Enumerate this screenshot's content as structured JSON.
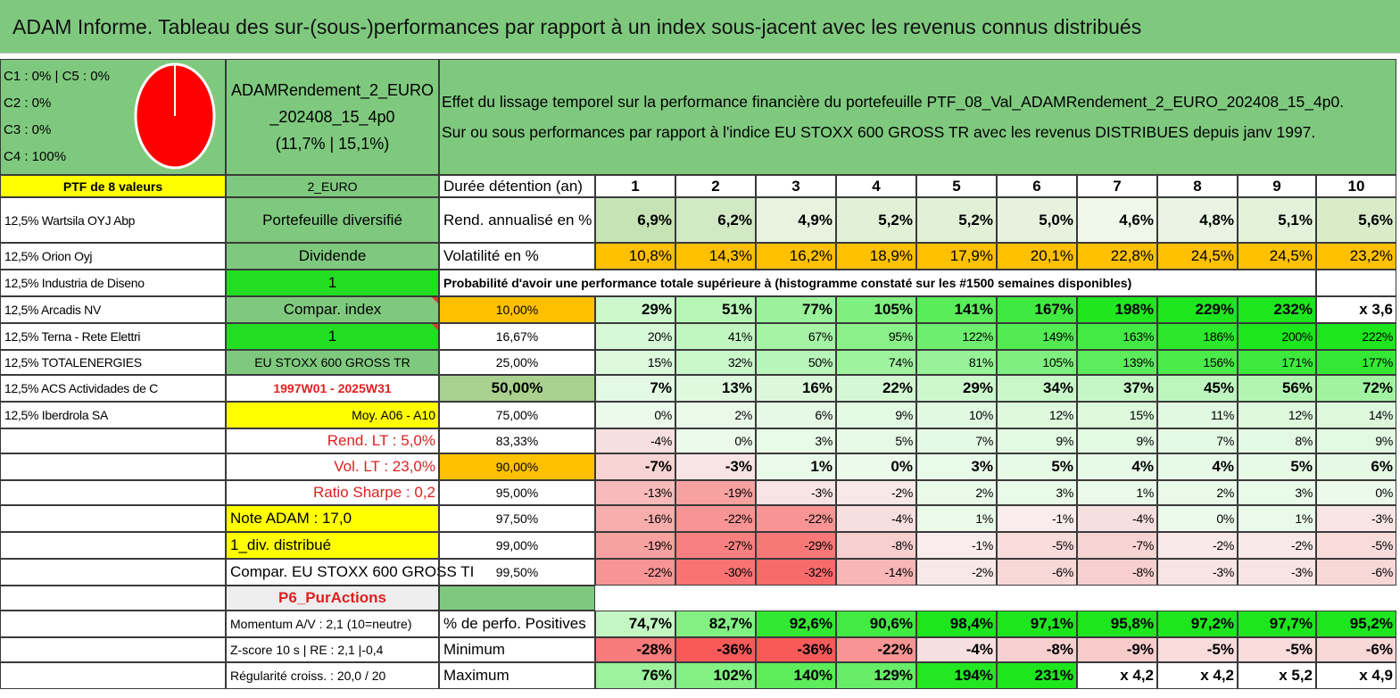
{
  "title": "ADAM Informe. Tableau des sur-(sous-)performances par rapport à un index sous-jacent avec les revenus connus distribués",
  "colors": {
    "title_green": "#7fc97f",
    "header_green": "#7fc97f",
    "bright_green": "#22dd22",
    "yellow": "#ffff00",
    "orange": "#ffc000",
    "red_text": "#e02020",
    "pie_red": "#ff0000"
  },
  "legend": {
    "lines": [
      "C1 : 0% | C5 : 0%",
      "C2 : 0%",
      "C3 : 0%",
      "C4 : 100%"
    ],
    "pie_value": 100
  },
  "fund": {
    "name_line1": "ADAMRendement_2_EURO",
    "name_line2": "_202408_15_4p0",
    "stats": "(11,7% | 15,1%)"
  },
  "description": {
    "line1": "Effet du lissage temporel sur la performance financière du portefeuille PTF_08_Val_ADAMRendement_2_EURO_202408_15_4p0.",
    "line2": "Sur ou sous performances par rapport à l'indice EU STOXX 600 GROSS TR avec les revenus DISTRIBUES depuis janv 1997."
  },
  "portfolio": {
    "header": "PTF de 8 valeurs",
    "holdings": [
      "12,5% Wartsila OYJ Abp",
      "12,5% Orion Oyj",
      "12,5% Industria de Diseno",
      "12,5% Arcadis NV",
      "12,5% Terna - Rete Elettri",
      "12,5% TOTALENERGIES",
      "12,5% ACS Actividades de C",
      "12,5% Iberdrola SA"
    ]
  },
  "info": {
    "rows": [
      "2_EURO",
      "Portefeuille diversifié",
      "Dividende",
      "1",
      "Compar. index",
      "1",
      "EU STOXX 600 GROSS TR",
      "1997W01 - 2025W31",
      "Moy. A06 - A10",
      "Rend. LT : 5,0%",
      "Vol. LT : 23,0%",
      "Ratio Sharpe : 0,2",
      "Note ADAM : 17,0",
      "1_div. distribué",
      "Compar. EU STOXX 600 GROSS TI",
      "P6_PurActions",
      "Momentum A/V : 2,1 (10=neutre)",
      "Z-score 10 s | RE : 2,1 |-0,4",
      "Régularité croiss. : 20,0 / 20"
    ]
  },
  "table": {
    "duration_label": "Durée détention (an)",
    "years": [
      "1",
      "2",
      "3",
      "4",
      "5",
      "6",
      "7",
      "8",
      "9",
      "10"
    ],
    "rend_label": "Rend. annualisé en %",
    "rend": [
      "6,9%",
      "6,2%",
      "4,9%",
      "5,2%",
      "5,2%",
      "5,0%",
      "4,6%",
      "4,8%",
      "5,1%",
      "5,6%"
    ],
    "vol_label": "Volatilité en %",
    "vol": [
      "10,8%",
      "14,3%",
      "16,2%",
      "18,9%",
      "17,9%",
      "20,1%",
      "22,8%",
      "24,5%",
      "24,5%",
      "23,2%"
    ],
    "prob_title": "Probabilité d'avoir une performance totale supérieure à (histogramme constaté sur les #1500 semaines disponibles)",
    "quantiles": [
      {
        "label": "10,00%",
        "values": [
          "29%",
          "51%",
          "77%",
          "105%",
          "141%",
          "167%",
          "198%",
          "229%",
          "232%",
          "x 3,6"
        ]
      },
      {
        "label": "16,67%",
        "values": [
          "20%",
          "41%",
          "67%",
          "95%",
          "122%",
          "149%",
          "163%",
          "186%",
          "200%",
          "222%"
        ]
      },
      {
        "label": "25,00%",
        "values": [
          "15%",
          "32%",
          "50%",
          "74%",
          "81%",
          "105%",
          "139%",
          "156%",
          "171%",
          "177%"
        ]
      },
      {
        "label": "50,00%",
        "values": [
          "7%",
          "13%",
          "16%",
          "22%",
          "29%",
          "34%",
          "37%",
          "45%",
          "56%",
          "72%"
        ]
      },
      {
        "label": "75,00%",
        "values": [
          "0%",
          "2%",
          "6%",
          "9%",
          "10%",
          "12%",
          "15%",
          "11%",
          "12%",
          "14%"
        ]
      },
      {
        "label": "83,33%",
        "values": [
          "-4%",
          "0%",
          "3%",
          "5%",
          "7%",
          "9%",
          "9%",
          "7%",
          "8%",
          "9%"
        ]
      },
      {
        "label": "90,00%",
        "values": [
          "-7%",
          "-3%",
          "1%",
          "0%",
          "3%",
          "5%",
          "4%",
          "4%",
          "5%",
          "6%"
        ]
      },
      {
        "label": "95,00%",
        "values": [
          "-13%",
          "-19%",
          "-3%",
          "-2%",
          "2%",
          "3%",
          "1%",
          "2%",
          "3%",
          "0%"
        ]
      },
      {
        "label": "97,50%",
        "values": [
          "-16%",
          "-22%",
          "-22%",
          "-4%",
          "1%",
          "-1%",
          "-4%",
          "0%",
          "1%",
          "-3%"
        ]
      },
      {
        "label": "99,00%",
        "values": [
          "-19%",
          "-27%",
          "-29%",
          "-8%",
          "-1%",
          "-5%",
          "-7%",
          "-2%",
          "-2%",
          "-5%"
        ]
      },
      {
        "label": "99,50%",
        "values": [
          "-22%",
          "-30%",
          "-32%",
          "-14%",
          "-2%",
          "-6%",
          "-8%",
          "-3%",
          "-3%",
          "-6%"
        ]
      }
    ],
    "stats": [
      {
        "label": "% de perfo. Positives",
        "values": [
          "74,7%",
          "82,7%",
          "92,6%",
          "90,6%",
          "98,4%",
          "97,1%",
          "95,8%",
          "97,2%",
          "97,7%",
          "95,2%"
        ]
      },
      {
        "label": "Minimum",
        "values": [
          "-28%",
          "-36%",
          "-36%",
          "-22%",
          "-4%",
          "-8%",
          "-9%",
          "-5%",
          "-5%",
          "-6%"
        ]
      },
      {
        "label": "Maximum",
        "values": [
          "76%",
          "102%",
          "140%",
          "129%",
          "194%",
          "231%",
          "x 4,2",
          "x 4,2",
          "x 5,2",
          "x 4,9"
        ]
      }
    ]
  }
}
